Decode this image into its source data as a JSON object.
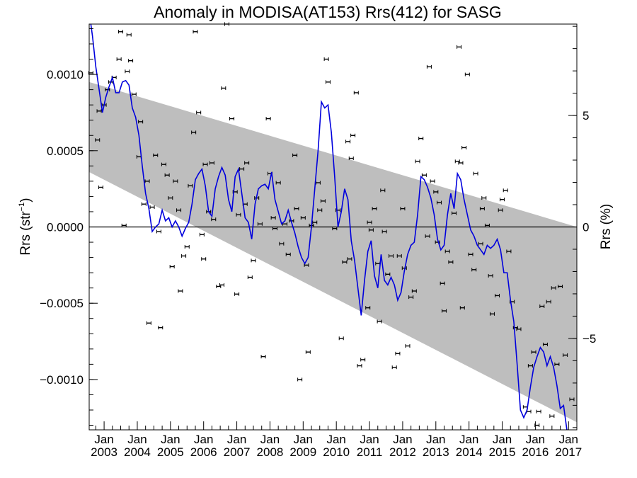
{
  "chart_data": {
    "type": "scatter",
    "title": "Anomaly in MODISA(AT153) Rrs(412) for SASG",
    "ylabel_left": "Rrs (str",
    "ylabel_left_exp": "−1",
    "ylabel_left_close": ")",
    "ylabel_right": "Rrs (%)",
    "x_range": [
      2002.55,
      2017.25
    ],
    "y_range": [
      -0.00133,
      0.00133
    ],
    "y2_range": [
      -9.1,
      9.1
    ],
    "grid": false,
    "legend": "none",
    "colors": {
      "band": "#bebebe",
      "line": "#0000dd",
      "points": "#000000",
      "zero_line": "#000000"
    },
    "left_ticks": [
      {
        "value": 0.001,
        "label": "0.0010"
      },
      {
        "value": 0.0005,
        "label": "0.0005"
      },
      {
        "value": 0.0,
        "label": "0.0000"
      },
      {
        "value": -0.0005,
        "label": "−0.0005"
      },
      {
        "value": -0.001,
        "label": "−0.0010"
      }
    ],
    "right_ticks": [
      {
        "value": 5,
        "label": "5"
      },
      {
        "value": 0,
        "label": "0"
      },
      {
        "value": -5,
        "label": "−5"
      }
    ],
    "x_ticks": [
      {
        "value": 2003,
        "month": "Jan",
        "year": "2003"
      },
      {
        "value": 2004,
        "month": "Jan",
        "year": "2004"
      },
      {
        "value": 2005,
        "month": "Jan",
        "year": "2005"
      },
      {
        "value": 2006,
        "month": "Jan",
        "year": "2006"
      },
      {
        "value": 2007,
        "month": "Jan",
        "year": "2007"
      },
      {
        "value": 2008,
        "month": "Jan",
        "year": "2008"
      },
      {
        "value": 2009,
        "month": "Jan",
        "year": "2009"
      },
      {
        "value": 2010,
        "month": "Jan",
        "year": "2010"
      },
      {
        "value": 2011,
        "month": "Jan",
        "year": "2011"
      },
      {
        "value": 2012,
        "month": "Jan",
        "year": "2012"
      },
      {
        "value": 2013,
        "month": "Jan",
        "year": "2013"
      },
      {
        "value": 2014,
        "month": "Jan",
        "year": "2014"
      },
      {
        "value": 2015,
        "month": "Jan",
        "year": "2015"
      },
      {
        "value": 2016,
        "month": "Jan",
        "year": "2016"
      },
      {
        "value": 2017,
        "month": "Jan",
        "year": "2017"
      }
    ],
    "band": {
      "upper": [
        [
          2002.55,
          0.00095
        ],
        [
          2017.25,
          0.0
        ]
      ],
      "lower": [
        [
          2002.55,
          0.00036
        ],
        [
          2017.25,
          -0.00128
        ]
      ]
    },
    "points": [
      [
        2002.6,
        0.00101
      ],
      [
        2002.8,
        0.00057
      ],
      [
        2002.85,
        0.00076
      ],
      [
        2002.9,
        0.00026
      ],
      [
        2003.0,
        0.0008
      ],
      [
        2003.1,
        0.0009
      ],
      [
        2003.2,
        0.00095
      ],
      [
        2003.3,
        0.00098
      ],
      [
        2003.45,
        0.0011
      ],
      [
        2003.5,
        0.00128
      ],
      [
        2003.6,
        1e-05
      ],
      [
        2003.7,
        0.00102
      ],
      [
        2003.75,
        0.00126
      ],
      [
        2003.8,
        0.00109
      ],
      [
        2003.9,
        0.00087
      ],
      [
        2004.05,
        0.00046
      ],
      [
        2004.1,
        0.00069
      ],
      [
        2004.2,
        0.00015
      ],
      [
        2004.3,
        0.0003
      ],
      [
        2004.35,
        -0.00063
      ],
      [
        2004.45,
        0.00013
      ],
      [
        2004.55,
        0.00047
      ],
      [
        2004.65,
        -3e-05
      ],
      [
        2004.7,
        -0.00066
      ],
      [
        2004.8,
        0.00041
      ],
      [
        2004.9,
        0.00034
      ],
      [
        2005.0,
        0.00019
      ],
      [
        2005.05,
        -0.00026
      ],
      [
        2005.15,
        0.0003
      ],
      [
        2005.25,
        0.00011
      ],
      [
        2005.3,
        -0.00042
      ],
      [
        2005.4,
        -0.00019
      ],
      [
        2005.5,
        -0.00013
      ],
      [
        2005.6,
        0.00027
      ],
      [
        2005.7,
        0.00062
      ],
      [
        2005.75,
        0.00128
      ],
      [
        2005.85,
        0.00075
      ],
      [
        2005.95,
        -5e-05
      ],
      [
        2006.0,
        -0.00021
      ],
      [
        2006.05,
        0.00041
      ],
      [
        2006.15,
        0.0001
      ],
      [
        2006.25,
        0.00042
      ],
      [
        2006.3,
        5e-05
      ],
      [
        2006.45,
        -0.00039
      ],
      [
        2006.55,
        -0.00038
      ],
      [
        2006.6,
        0.00091
      ],
      [
        2006.7,
        0.00133
      ],
      [
        2006.85,
        0.00071
      ],
      [
        2006.95,
        0.00023
      ],
      [
        2007.0,
        -0.00044
      ],
      [
        2007.05,
        8e-05
      ],
      [
        2007.15,
        0.00038
      ],
      [
        2007.25,
        0.00015
      ],
      [
        2007.3,
        0.00042
      ],
      [
        2007.4,
        -0.00033
      ],
      [
        2007.5,
        -0.00022
      ],
      [
        2007.6,
        0.00019
      ],
      [
        2007.7,
        2e-05
      ],
      [
        2007.8,
        -0.00085
      ],
      [
        2007.95,
        0.00071
      ],
      [
        2008.0,
        0.00035
      ],
      [
        2008.1,
        6e-05
      ],
      [
        2008.15,
        -1e-05
      ],
      [
        2008.25,
        0.00029
      ],
      [
        2008.35,
        -0.00011
      ],
      [
        2008.45,
        2e-05
      ],
      [
        2008.55,
        -0.00018
      ],
      [
        2008.65,
        4e-05
      ],
      [
        2008.75,
        0.00047
      ],
      [
        2008.8,
        0.00012
      ],
      [
        2008.9,
        -0.001
      ],
      [
        2009.0,
        6e-05
      ],
      [
        2009.1,
        -0.00025
      ],
      [
        2009.15,
        -0.00082
      ],
      [
        2009.25,
        1e-05
      ],
      [
        2009.35,
        3e-05
      ],
      [
        2009.45,
        0.00029
      ],
      [
        2009.5,
        0.00011
      ],
      [
        2009.6,
        0.00017
      ],
      [
        2009.7,
        0.0011
      ],
      [
        2009.75,
        0.00095
      ],
      [
        2009.95,
        -1e-05
      ],
      [
        2010.05,
        0.00011
      ],
      [
        2010.15,
        -0.00073
      ],
      [
        2010.25,
        -0.00023
      ],
      [
        2010.35,
        0.00056
      ],
      [
        2010.4,
        -0.00021
      ],
      [
        2010.45,
        0.00045
      ],
      [
        2010.5,
        0.0006
      ],
      [
        2010.6,
        0.00088
      ],
      [
        2010.7,
        -0.00091
      ],
      [
        2010.8,
        -0.00087
      ],
      [
        2010.95,
        -0.00053
      ],
      [
        2011.0,
        3e-05
      ],
      [
        2011.05,
        -2e-05
      ],
      [
        2011.15,
        0.00012
      ],
      [
        2011.25,
        -0.00024
      ],
      [
        2011.3,
        -0.00062
      ],
      [
        2011.4,
        0.00024
      ],
      [
        2011.45,
        -3e-05
      ],
      [
        2011.55,
        -0.00031
      ],
      [
        2011.65,
        -0.00019
      ],
      [
        2011.75,
        -0.00092
      ],
      [
        2011.85,
        -0.00083
      ],
      [
        2011.9,
        -0.00019
      ],
      [
        2012.0,
        0.00012
      ],
      [
        2012.05,
        -0.00027
      ],
      [
        2012.15,
        -0.00078
      ],
      [
        2012.25,
        -0.00046
      ],
      [
        2012.35,
        -0.00042
      ],
      [
        2012.45,
        0.00043
      ],
      [
        2012.55,
        0.00058
      ],
      [
        2012.65,
        0.00034
      ],
      [
        2012.75,
        -6e-05
      ],
      [
        2012.8,
        0.00105
      ],
      [
        2012.9,
        0.0003
      ],
      [
        2013.0,
        0.00023
      ],
      [
        2013.05,
        -0.0001
      ],
      [
        2013.1,
        0.00016
      ],
      [
        2013.2,
        -0.00037
      ],
      [
        2013.25,
        -0.00055
      ],
      [
        2013.35,
        -0.00016
      ],
      [
        2013.45,
        -0.00023
      ],
      [
        2013.55,
        9e-05
      ],
      [
        2013.65,
        0.00043
      ],
      [
        2013.7,
        0.00118
      ],
      [
        2013.75,
        0.00042
      ],
      [
        2013.8,
        -0.00053
      ],
      [
        2013.85,
        0.00052
      ],
      [
        2013.95,
        0.001
      ],
      [
        2014.05,
        -0.00018
      ],
      [
        2014.15,
        -0.00028
      ],
      [
        2014.2,
        0.00035
      ],
      [
        2014.35,
        -0.00011
      ],
      [
        2014.4,
        0.00012
      ],
      [
        2014.45,
        0.00019
      ],
      [
        2014.55,
        1e-05
      ],
      [
        2014.65,
        -0.00032
      ],
      [
        2014.7,
        -0.00057
      ],
      [
        2014.85,
        -0.00045
      ],
      [
        2014.95,
        0.00011
      ],
      [
        2015.0,
        0.00018
      ],
      [
        2015.1,
        0.00024
      ],
      [
        2015.2,
        -0.00016
      ],
      [
        2015.3,
        -0.00049
      ],
      [
        2015.4,
        -0.00066
      ],
      [
        2015.5,
        -0.00067
      ],
      [
        2015.7,
        -0.00118
      ],
      [
        2015.8,
        -0.00121
      ],
      [
        2015.85,
        -0.00091
      ],
      [
        2015.95,
        -0.00082
      ],
      [
        2016.05,
        -0.0013
      ],
      [
        2016.1,
        -0.00121
      ],
      [
        2016.2,
        -0.00052
      ],
      [
        2016.3,
        -0.00077
      ],
      [
        2016.4,
        -0.00049
      ],
      [
        2016.5,
        -0.00124
      ],
      [
        2016.55,
        -0.0004
      ],
      [
        2016.65,
        -0.0009
      ],
      [
        2016.75,
        -0.00039
      ],
      [
        2016.9,
        -0.00084
      ],
      [
        2017.1,
        -0.00113
      ]
    ],
    "smoothed": [
      [
        2002.6,
        0.00135
      ],
      [
        2002.65,
        0.00125
      ],
      [
        2002.75,
        0.00105
      ],
      [
        2002.85,
        0.0009
      ],
      [
        2002.95,
        0.00075
      ],
      [
        2003.05,
        0.00085
      ],
      [
        2003.15,
        0.00092
      ],
      [
        2003.25,
        0.00098
      ],
      [
        2003.35,
        0.00088
      ],
      [
        2003.45,
        0.00088
      ],
      [
        2003.55,
        0.00095
      ],
      [
        2003.65,
        0.00096
      ],
      [
        2003.75,
        0.00093
      ],
      [
        2003.85,
        0.00078
      ],
      [
        2003.95,
        0.00072
      ],
      [
        2004.05,
        0.0006
      ],
      [
        2004.15,
        0.0004
      ],
      [
        2004.25,
        0.00022
      ],
      [
        2004.35,
        0.00012
      ],
      [
        2004.45,
        -3e-05
      ],
      [
        2004.55,
        0.0
      ],
      [
        2004.65,
        2e-05
      ],
      [
        2004.75,
        0.00011
      ],
      [
        2004.85,
        4e-05
      ],
      [
        2004.95,
        6e-05
      ],
      [
        2005.05,
        0.0
      ],
      [
        2005.15,
        4e-05
      ],
      [
        2005.25,
        0.0
      ],
      [
        2005.35,
        -6e-05
      ],
      [
        2005.45,
        -1e-05
      ],
      [
        2005.55,
        3e-05
      ],
      [
        2005.65,
        0.00015
      ],
      [
        2005.75,
        0.00031
      ],
      [
        2005.85,
        0.00035
      ],
      [
        2005.95,
        0.00038
      ],
      [
        2006.05,
        0.00027
      ],
      [
        2006.15,
        0.0001
      ],
      [
        2006.25,
        7e-05
      ],
      [
        2006.35,
        0.00025
      ],
      [
        2006.45,
        0.00033
      ],
      [
        2006.55,
        0.00039
      ],
      [
        2006.65,
        0.00034
      ],
      [
        2006.75,
        0.00018
      ],
      [
        2006.85,
        0.0001
      ],
      [
        2006.95,
        0.00033
      ],
      [
        2007.05,
        0.00038
      ],
      [
        2007.15,
        0.00022
      ],
      [
        2007.25,
        6e-05
      ],
      [
        2007.35,
        3e-05
      ],
      [
        2007.45,
        -8e-05
      ],
      [
        2007.55,
        0.00015
      ],
      [
        2007.65,
        0.00025
      ],
      [
        2007.75,
        0.00027
      ],
      [
        2007.85,
        0.00028
      ],
      [
        2007.95,
        0.00025
      ],
      [
        2008.05,
        0.00036
      ],
      [
        2008.15,
        0.00018
      ],
      [
        2008.25,
        0.0001
      ],
      [
        2008.35,
        2e-05
      ],
      [
        2008.45,
        4e-05
      ],
      [
        2008.55,
        0.00011
      ],
      [
        2008.65,
        3e-05
      ],
      [
        2008.75,
        -4e-05
      ],
      [
        2008.85,
        -0.00013
      ],
      [
        2008.95,
        -0.0002
      ],
      [
        2009.05,
        -0.00024
      ],
      [
        2009.15,
        -0.0002
      ],
      [
        2009.25,
        0.0
      ],
      [
        2009.35,
        0.00025
      ],
      [
        2009.45,
        0.0005
      ],
      [
        2009.55,
        0.00082
      ],
      [
        2009.65,
        0.00078
      ],
      [
        2009.75,
        0.0008
      ],
      [
        2009.85,
        0.00062
      ],
      [
        2009.95,
        0.00033
      ],
      [
        2010.05,
        0.0
      ],
      [
        2010.15,
        0.0001
      ],
      [
        2010.25,
        0.00025
      ],
      [
        2010.35,
        0.00018
      ],
      [
        2010.45,
        -9e-05
      ],
      [
        2010.55,
        -0.00022
      ],
      [
        2010.65,
        -0.0004
      ],
      [
        2010.75,
        -0.00058
      ],
      [
        2010.85,
        -0.00035
      ],
      [
        2010.95,
        -0.00016
      ],
      [
        2011.05,
        -9e-05
      ],
      [
        2011.15,
        -0.00032
      ],
      [
        2011.25,
        -0.0004
      ],
      [
        2011.35,
        -0.00018
      ],
      [
        2011.45,
        -0.00035
      ],
      [
        2011.55,
        -0.00038
      ],
      [
        2011.65,
        -0.00033
      ],
      [
        2011.75,
        -0.00038
      ],
      [
        2011.85,
        -0.00048
      ],
      [
        2011.95,
        -0.00043
      ],
      [
        2012.05,
        -0.00029
      ],
      [
        2012.15,
        -0.00018
      ],
      [
        2012.25,
        -0.00012
      ],
      [
        2012.35,
        -0.0001
      ],
      [
        2012.45,
        8e-05
      ],
      [
        2012.55,
        0.00033
      ],
      [
        2012.65,
        0.00031
      ],
      [
        2012.75,
        0.00026
      ],
      [
        2012.85,
        0.00019
      ],
      [
        2012.95,
        8e-05
      ],
      [
        2013.05,
        -8e-05
      ],
      [
        2013.15,
        -0.00015
      ],
      [
        2013.25,
        -0.00012
      ],
      [
        2013.35,
        8e-05
      ],
      [
        2013.45,
        0.00022
      ],
      [
        2013.55,
        0.00012
      ],
      [
        2013.65,
        0.00035
      ],
      [
        2013.75,
        0.00031
      ],
      [
        2013.85,
        0.00018
      ],
      [
        2013.95,
        8e-05
      ],
      [
        2014.05,
        -2e-05
      ],
      [
        2014.15,
        -6e-05
      ],
      [
        2014.25,
        -0.00012
      ],
      [
        2014.35,
        -0.00015
      ],
      [
        2014.45,
        -0.00018
      ],
      [
        2014.55,
        -0.00012
      ],
      [
        2014.65,
        -0.00014
      ],
      [
        2014.75,
        -0.00012
      ],
      [
        2014.85,
        -8e-05
      ],
      [
        2014.95,
        -0.00015
      ],
      [
        2015.05,
        -0.0003
      ],
      [
        2015.15,
        -0.0003
      ],
      [
        2015.25,
        -0.00048
      ],
      [
        2015.35,
        -0.00062
      ],
      [
        2015.45,
        -0.0009
      ],
      [
        2015.55,
        -0.0012
      ],
      [
        2015.65,
        -0.00125
      ],
      [
        2015.75,
        -0.0012
      ],
      [
        2015.85,
        -0.00105
      ],
      [
        2015.95,
        -0.00092
      ],
      [
        2016.05,
        -0.00085
      ],
      [
        2016.15,
        -0.00079
      ],
      [
        2016.25,
        -0.00082
      ],
      [
        2016.35,
        -0.00091
      ],
      [
        2016.45,
        -0.00085
      ],
      [
        2016.55,
        -0.00092
      ],
      [
        2016.65,
        -0.00104
      ],
      [
        2016.75,
        -0.00119
      ],
      [
        2016.85,
        -0.00117
      ],
      [
        2016.95,
        -0.00135
      ]
    ]
  }
}
